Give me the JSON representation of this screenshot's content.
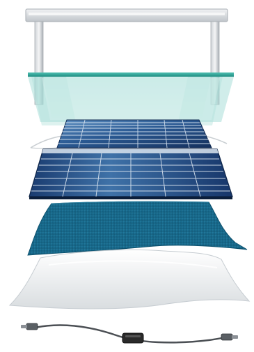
{
  "diagram": {
    "type": "exploded-solar-panel-layers",
    "layers": [
      "aluminum-frame",
      "tempered-glass",
      "eva-film-top",
      "solar-cells",
      "eva-film-bottom",
      "backsheet",
      "junction-box-cable"
    ],
    "colors": {
      "frame": "#d8dbde",
      "frame_shade": "#9aa0a6",
      "glass": "#68c6be",
      "glass_edge": "#2a9a8c",
      "cells_dark": "#1b3e73",
      "cells_light": "#4a7fb3",
      "eva_mesh": "#1a7396",
      "backsheet": "#e9ecee",
      "cable": "#4b4f54",
      "connector": "#2a2a2a"
    }
  }
}
